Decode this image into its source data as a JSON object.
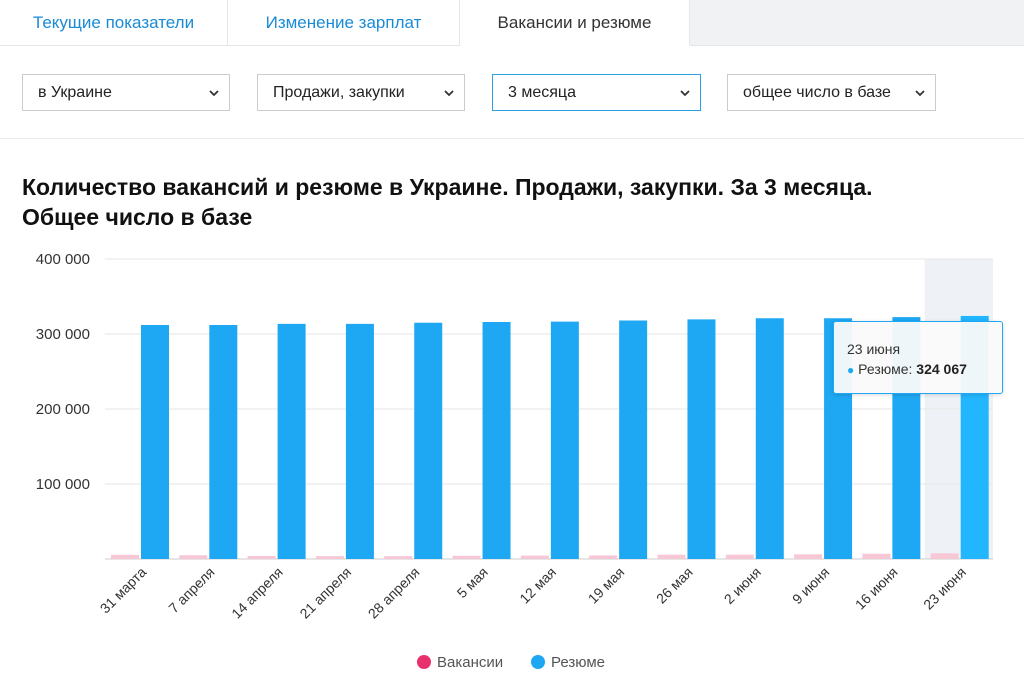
{
  "tabs": [
    {
      "label": "Текущие показатели"
    },
    {
      "label": "Изменение зарплат"
    },
    {
      "label": "Вакансии и резюме"
    }
  ],
  "filters": {
    "region": "в Украине",
    "category": "Продажи, закупки",
    "period": "3 месяца",
    "metric": "общее число в базе"
  },
  "chart_title_line1": "Количество вакансий и резюме в Украине. Продажи, закупки. За 3 месяца.",
  "chart_title_line2": "Общее число в базе",
  "tooltip": {
    "date": "23 июня",
    "series_label": "Резюме:",
    "value": "324 067"
  },
  "colors": {
    "vacancies": "#e8316c",
    "resumes": "#1ea7f2",
    "accent": "#1a8ad6"
  },
  "chart_data": {
    "type": "bar",
    "title": "Количество вакансий и резюме в Украине. Продажи, закупки. За 3 месяца. Общее число в базе",
    "categories": [
      "31 марта",
      "7 апреля",
      "14 апреля",
      "21 апреля",
      "28 апреля",
      "5 мая",
      "12 мая",
      "19 мая",
      "26 мая",
      "2 июня",
      "9 июня",
      "16 июня",
      "23 июня"
    ],
    "series": [
      {
        "name": "Вакансии",
        "values": [
          5500,
          5000,
          4000,
          3800,
          3800,
          4300,
          4500,
          4700,
          5800,
          5800,
          6200,
          7000,
          7500
        ]
      },
      {
        "name": "Резюме",
        "values": [
          312000,
          312000,
          313500,
          313500,
          315000,
          316000,
          316500,
          318000,
          319500,
          321000,
          321000,
          322500,
          324067
        ]
      }
    ],
    "ylim": [
      0,
      400000
    ],
    "yticks": [
      "400 000",
      "300 000",
      "200 000",
      "100 000"
    ],
    "ytick_values": [
      400000,
      300000,
      200000,
      100000
    ],
    "highlighted_category": "23 июня",
    "legend_position": "bottom-center",
    "grid": true
  }
}
